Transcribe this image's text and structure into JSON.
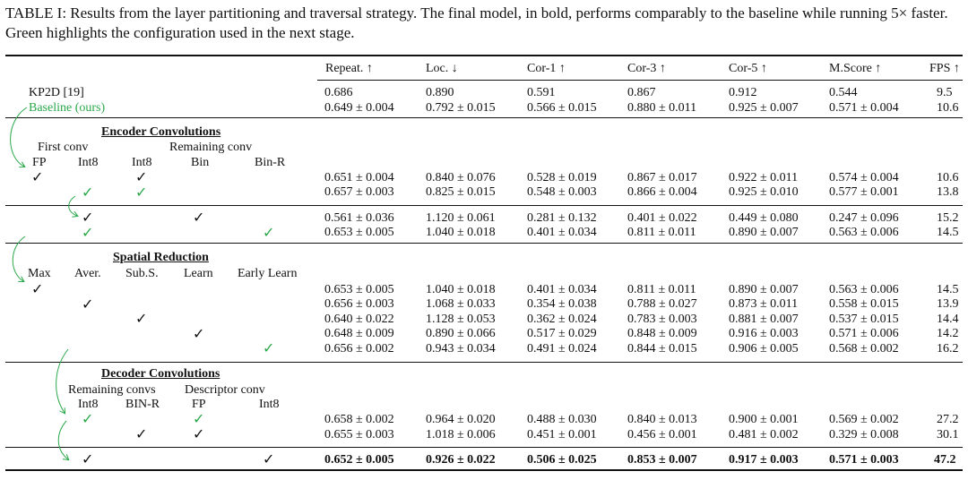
{
  "caption": {
    "label": "TABLE I:",
    "text": "Results from the layer partitioning and traversal strategy. The final model, in bold, performs comparably to the baseline while running 5× faster. Green highlights the configuration used in the next stage."
  },
  "headers": [
    "Repeat. ↑",
    "Loc. ↓",
    "Cor-1 ↑",
    "Cor-3 ↑",
    "Cor-5 ↑",
    "M.Score ↑",
    "FPS ↑"
  ],
  "baseline_rows": [
    {
      "name": "KP2D [19]",
      "values": [
        "0.686",
        "0.890",
        "0.591",
        "0.867",
        "0.912",
        "0.544",
        "9.5"
      ]
    },
    {
      "name": "Baseline (ours)",
      "values": [
        "0.649 ± 0.004",
        "0.792 ± 0.015",
        "0.566 ± 0.015",
        "0.880 ± 0.011",
        "0.925 ± 0.007",
        "0.571 ± 0.004",
        "10.6"
      ]
    }
  ],
  "encoder": {
    "title": "Encoder Convolutions",
    "group1": "First conv",
    "group2": "Remaining conv",
    "cols": [
      "FP",
      "Int8",
      "Int8",
      "Bin",
      "Bin-R"
    ],
    "rows_a": [
      [
        "0.651 ± 0.004",
        "0.840 ± 0.076",
        "0.528 ± 0.019",
        "0.867 ± 0.017",
        "0.922 ± 0.011",
        "0.574 ± 0.004",
        "10.6"
      ],
      [
        "0.657 ± 0.003",
        "0.825 ± 0.015",
        "0.548 ± 0.003",
        "0.866 ± 0.004",
        "0.925 ± 0.010",
        "0.577 ± 0.001",
        "13.8"
      ]
    ],
    "rows_b": [
      [
        "0.561 ± 0.036",
        "1.120 ± 0.061",
        "0.281 ± 0.132",
        "0.401 ± 0.022",
        "0.449 ± 0.080",
        "0.247 ± 0.096",
        "15.2"
      ],
      [
        "0.653 ± 0.005",
        "1.040 ± 0.018",
        "0.401 ± 0.034",
        "0.811 ± 0.011",
        "0.890 ± 0.007",
        "0.563 ± 0.006",
        "14.5"
      ]
    ]
  },
  "spatial": {
    "title": "Spatial Reduction",
    "cols": [
      "Max",
      "Aver.",
      "Sub.S.",
      "Learn",
      "Early Learn"
    ],
    "rows": [
      [
        "0.653 ± 0.005",
        "1.040 ± 0.018",
        "0.401 ± 0.034",
        "0.811 ± 0.011",
        "0.890 ± 0.007",
        "0.563 ± 0.006",
        "14.5"
      ],
      [
        "0.656 ± 0.003",
        "1.068 ± 0.033",
        "0.354 ± 0.038",
        "0.788 ± 0.027",
        "0.873 ± 0.011",
        "0.558 ± 0.015",
        "13.9"
      ],
      [
        "0.640 ± 0.022",
        "1.128 ± 0.053",
        "0.362 ± 0.024",
        "0.783 ± 0.003",
        "0.881 ± 0.007",
        "0.537 ± 0.015",
        "14.4"
      ],
      [
        "0.648 ± 0.009",
        "0.890 ± 0.066",
        "0.517 ± 0.029",
        "0.848 ± 0.009",
        "0.916 ± 0.003",
        "0.571 ± 0.006",
        "14.2"
      ],
      [
        "0.656 ± 0.002",
        "0.943 ± 0.034",
        "0.491 ± 0.024",
        "0.844 ± 0.015",
        "0.906 ± 0.005",
        "0.568 ± 0.002",
        "16.2"
      ]
    ]
  },
  "decoder": {
    "title": "Decoder Convolutions",
    "group1": "Remaining convs",
    "group2": "Descriptor conv",
    "cols": [
      "Int8",
      "BIN-R",
      "FP",
      "Int8"
    ],
    "rows": [
      [
        "0.658 ± 0.002",
        "0.964 ± 0.020",
        "0.488 ± 0.030",
        "0.840 ± 0.013",
        "0.900 ± 0.001",
        "0.569 ± 0.002",
        "27.2"
      ],
      [
        "0.655 ± 0.003",
        "1.018 ± 0.006",
        "0.451 ± 0.001",
        "0.456 ± 0.001",
        "0.481 ± 0.002",
        "0.329 ± 0.008",
        "30.1"
      ]
    ],
    "final_row": [
      "0.652 ± 0.005",
      "0.926 ± 0.022",
      "0.506 ± 0.025",
      "0.853 ± 0.007",
      "0.917 ± 0.003",
      "0.571 ± 0.003",
      "47.2"
    ]
  },
  "checkmark": "✓",
  "colors": {
    "highlight": "#2aa84a",
    "text": "#111111"
  }
}
